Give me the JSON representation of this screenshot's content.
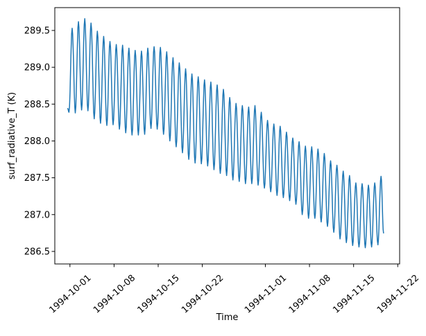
{
  "chart_data": {
    "type": "line",
    "title": "",
    "xlabel": "Time",
    "ylabel": "surf_radiative_T (K)",
    "legend": null,
    "grid": false,
    "line_color": "#1f77b4",
    "axes_color": "#000000",
    "background_color": "#ffffff",
    "x_epoch_date": "1994-10-01",
    "xlim_days": [
      -2.4,
      52.3
    ],
    "ylim": [
      286.33,
      289.81
    ],
    "x_ticks": [
      {
        "label": "1994-10-01",
        "day": 0
      },
      {
        "label": "1994-10-08",
        "day": 7
      },
      {
        "label": "1994-10-15",
        "day": 14
      },
      {
        "label": "1994-10-22",
        "day": 21
      },
      {
        "label": "1994-11-01",
        "day": 31
      },
      {
        "label": "1994-11-08",
        "day": 38
      },
      {
        "label": "1994-11-15",
        "day": 45
      },
      {
        "label": "1994-11-22",
        "day": 52
      }
    ],
    "x_tick_rotation_deg": 42,
    "y_ticks": [
      286.5,
      287.0,
      287.5,
      288.0,
      288.5,
      289.0,
      289.5
    ],
    "series": {
      "description": "Diurnal surface radiative temperature: one peak (~day+0.35) and one trough (~day+0.85) per day, values in K read from chart",
      "peak_time_of_day": 0.35,
      "trough_time_of_day": 0.85,
      "start": {
        "day": -0.35,
        "value": 288.44
      },
      "initial_trough": {
        "day": -0.15,
        "value": 288.39
      },
      "end": {
        "day": 49.75,
        "value": 286.75
      },
      "dates": [
        "1994-10-01",
        "1994-10-02",
        "1994-10-03",
        "1994-10-04",
        "1994-10-05",
        "1994-10-06",
        "1994-10-07",
        "1994-10-08",
        "1994-10-09",
        "1994-10-10",
        "1994-10-11",
        "1994-10-12",
        "1994-10-13",
        "1994-10-14",
        "1994-10-15",
        "1994-10-16",
        "1994-10-17",
        "1994-10-18",
        "1994-10-19",
        "1994-10-20",
        "1994-10-21",
        "1994-10-22",
        "1994-10-23",
        "1994-10-24",
        "1994-10-25",
        "1994-10-26",
        "1994-10-27",
        "1994-10-28",
        "1994-10-29",
        "1994-10-30",
        "1994-10-31",
        "1994-11-01",
        "1994-11-02",
        "1994-11-03",
        "1994-11-04",
        "1994-11-05",
        "1994-11-06",
        "1994-11-07",
        "1994-11-08",
        "1994-11-09",
        "1994-11-10",
        "1994-11-11",
        "1994-11-12",
        "1994-11-13",
        "1994-11-14",
        "1994-11-15",
        "1994-11-16",
        "1994-11-17",
        "1994-11-18",
        "1994-11-19"
      ],
      "daily_peak": [
        289.53,
        289.62,
        289.66,
        289.6,
        289.49,
        289.42,
        289.35,
        289.31,
        289.3,
        289.26,
        289.23,
        289.22,
        289.26,
        289.28,
        289.27,
        289.21,
        289.13,
        289.06,
        288.98,
        288.91,
        288.87,
        288.83,
        288.8,
        288.76,
        288.7,
        288.59,
        288.51,
        288.48,
        288.46,
        288.48,
        288.39,
        288.28,
        288.23,
        288.2,
        288.12,
        288.04,
        287.99,
        287.93,
        287.92,
        287.89,
        287.83,
        287.73,
        287.67,
        287.59,
        287.53,
        287.43,
        287.42,
        287.4,
        287.43,
        287.52
      ],
      "daily_trough": [
        288.38,
        288.42,
        288.41,
        288.3,
        288.24,
        288.21,
        288.22,
        288.16,
        288.11,
        288.08,
        288.08,
        288.09,
        288.17,
        288.16,
        288.09,
        288.0,
        287.92,
        287.84,
        287.75,
        287.7,
        287.69,
        287.66,
        287.61,
        287.56,
        287.53,
        287.47,
        287.45,
        287.42,
        287.42,
        287.4,
        287.36,
        287.31,
        287.26,
        287.23,
        287.19,
        287.14,
        287.0,
        286.95,
        286.95,
        286.9,
        286.84,
        286.76,
        286.67,
        286.62,
        286.58,
        286.56,
        286.55,
        286.56,
        286.59
      ]
    }
  }
}
